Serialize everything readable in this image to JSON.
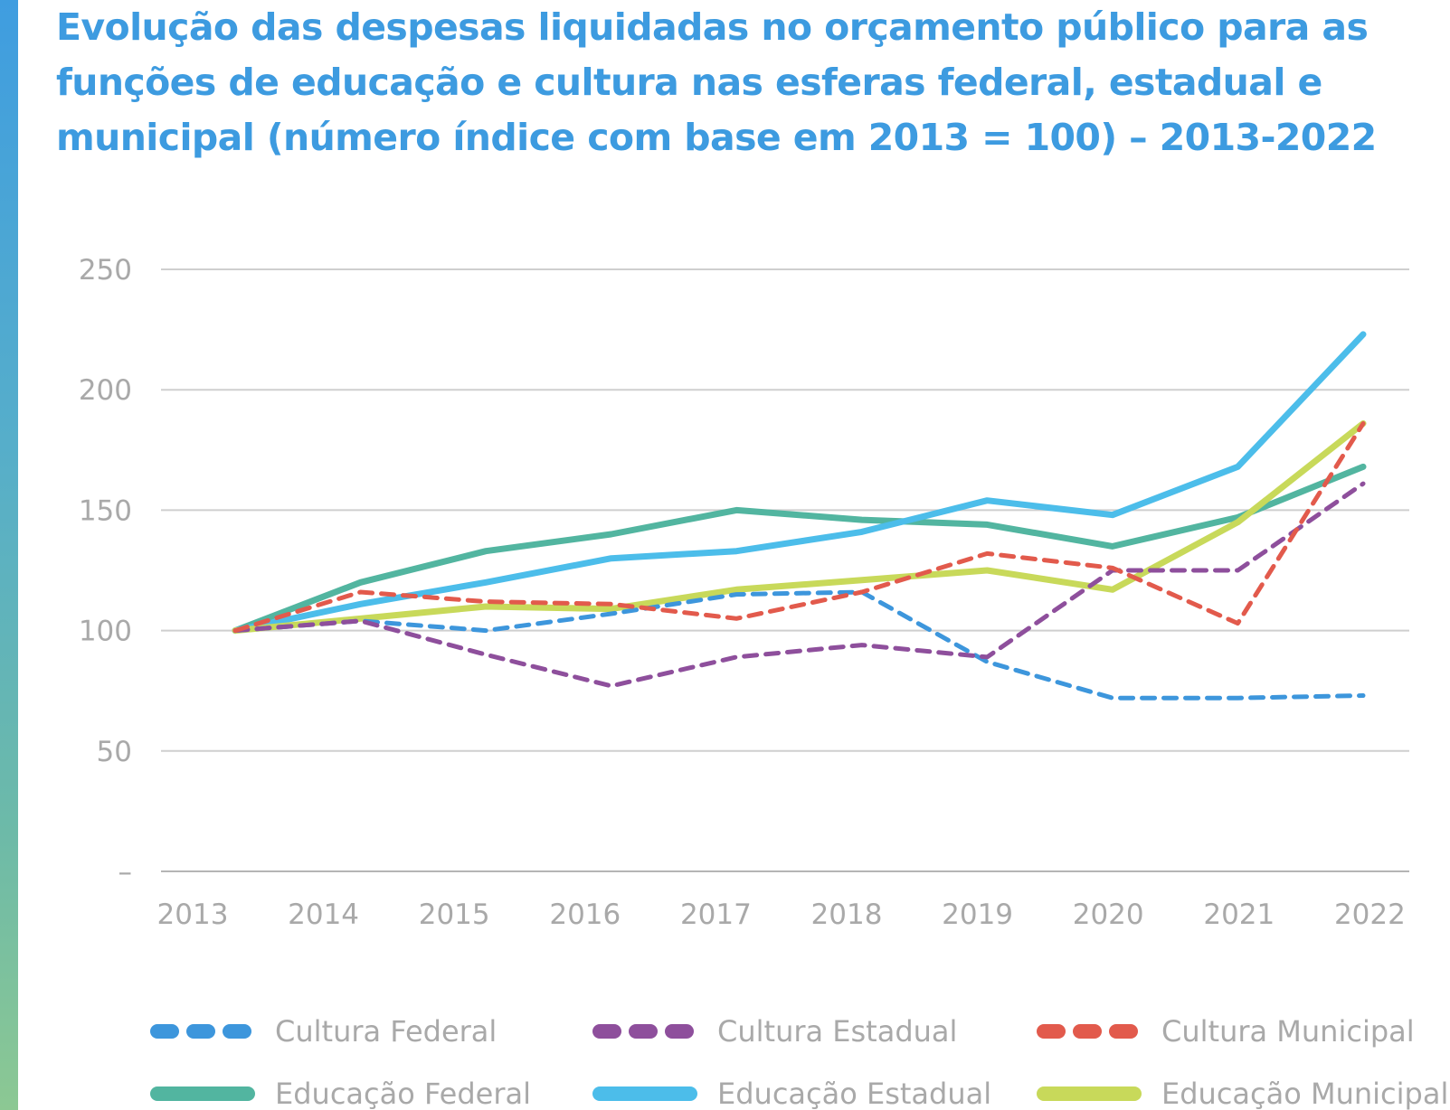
{
  "title": "Evolução das despesas liquidadas no orçamento público para as funções de educação e cultura nas esferas federal, estadual e municipal (número índice com base em 2013 = 100) – 2013-2022",
  "chart_data": {
    "type": "line",
    "title": "Evolução das despesas liquidadas no orçamento público para as funções de educação e cultura nas esferas federal, estadual e municipal (número índice com base em 2013 = 100) – 2013-2022",
    "x": [
      "2013",
      "2014",
      "2015",
      "2016",
      "2017",
      "2018",
      "2019",
      "2020",
      "2021",
      "2022"
    ],
    "ylim": [
      0,
      250
    ],
    "yticks": [
      {
        "value": 0,
        "label": "–"
      },
      {
        "value": 50,
        "label": "50"
      },
      {
        "value": 100,
        "label": "100"
      },
      {
        "value": 150,
        "label": "150"
      },
      {
        "value": 200,
        "label": "200"
      },
      {
        "value": 250,
        "label": "250"
      }
    ],
    "grid": true,
    "legend_position": "bottom",
    "series": [
      {
        "name": "Cultura Federal",
        "style": "dashed",
        "color": "#3d96dc",
        "values": [
          100,
          104,
          100,
          107,
          115,
          116,
          87,
          72,
          72,
          73
        ]
      },
      {
        "name": "Cultura Estadual",
        "style": "dashed",
        "color": "#8e4f9c",
        "values": [
          100,
          104,
          90,
          77,
          89,
          94,
          89,
          125,
          125,
          161
        ]
      },
      {
        "name": "Cultura Municipal",
        "style": "dashed",
        "color": "#e25a4c",
        "values": [
          100,
          116,
          112,
          111,
          105,
          116,
          132,
          126,
          103,
          186
        ]
      },
      {
        "name": "Educação Federal",
        "style": "solid",
        "color": "#52b5a0",
        "values": [
          100,
          120,
          133,
          140,
          150,
          146,
          144,
          135,
          147,
          168
        ]
      },
      {
        "name": "Educação Estadual",
        "style": "solid",
        "color": "#4cbdea",
        "values": [
          100,
          111,
          120,
          130,
          133,
          141,
          154,
          148,
          168,
          223
        ]
      },
      {
        "name": "Educação Municipal",
        "style": "solid",
        "color": "#c8d95a",
        "values": [
          100,
          105,
          110,
          109,
          117,
          121,
          125,
          117,
          145,
          186
        ]
      }
    ]
  }
}
